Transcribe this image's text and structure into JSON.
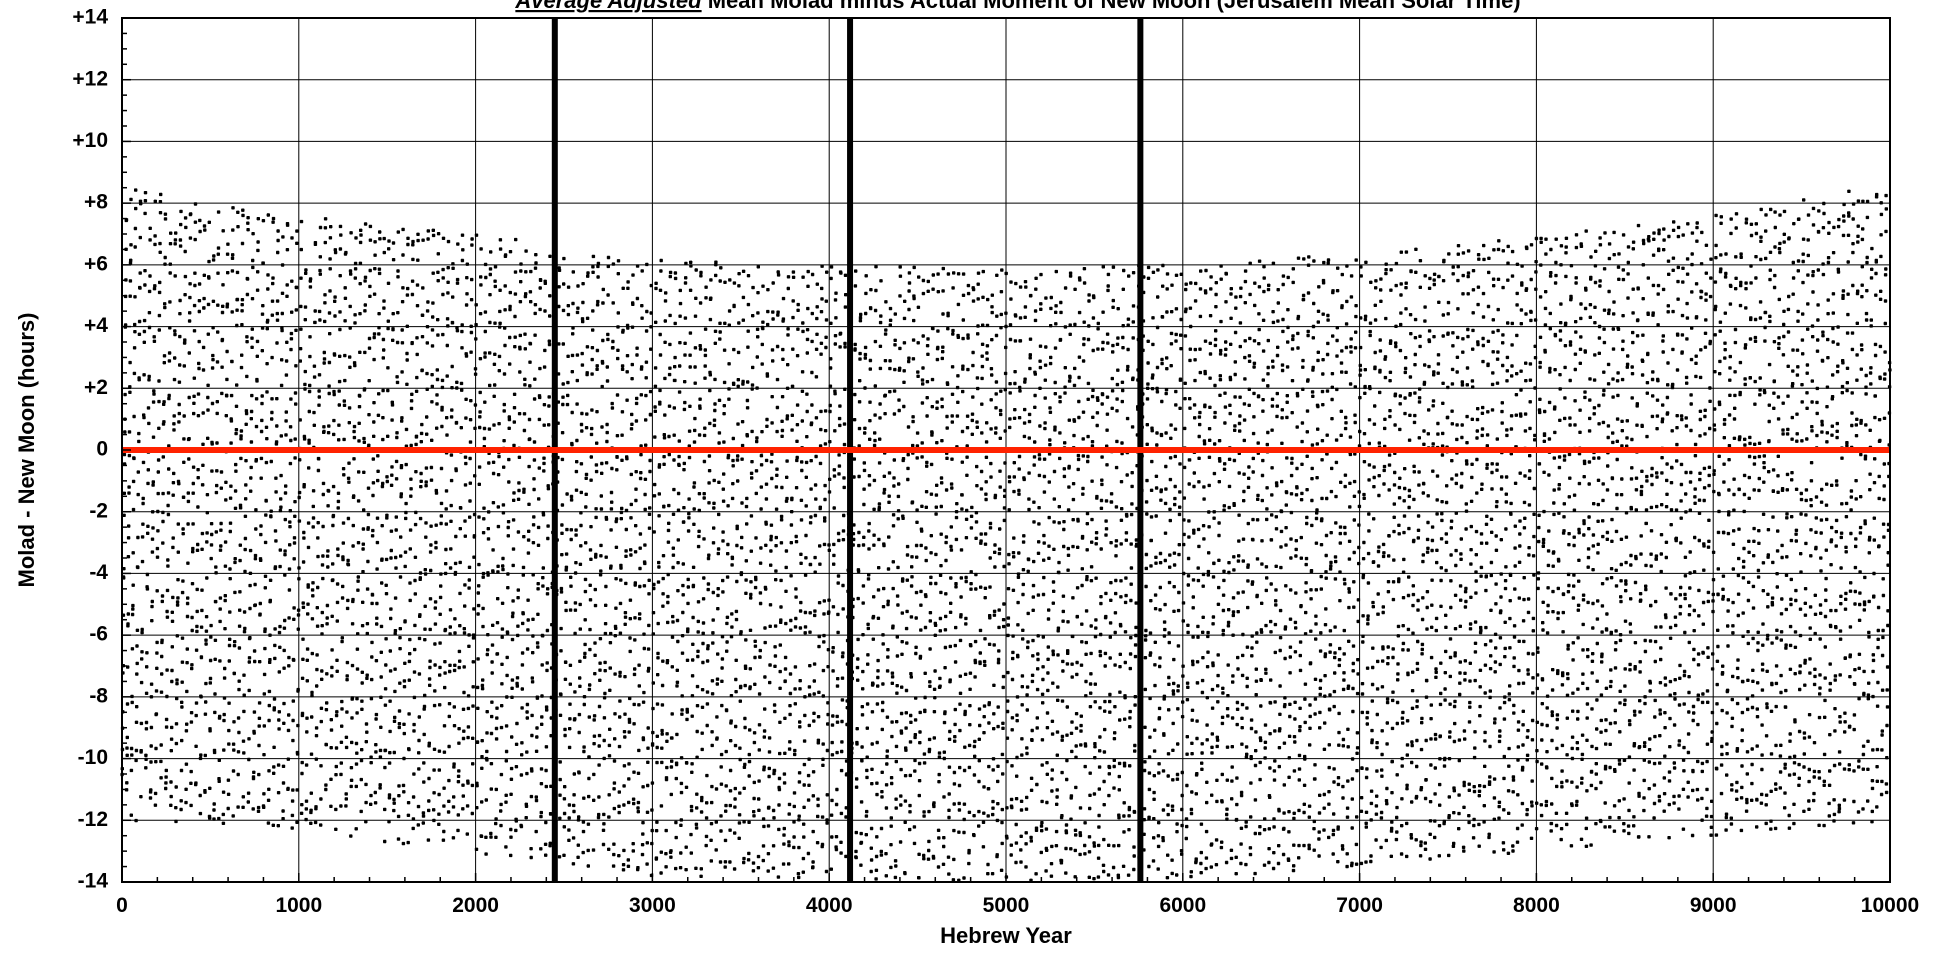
{
  "chart_data": {
    "type": "scatter",
    "title_emphasis": "Average Adjusted",
    "title_rest": " Mean Molad minus Actual Moment of New Moon (Jerusalem Mean Solar Time)",
    "xlabel": "Hebrew Year",
    "ylabel": "Molad - New Moon (hours)",
    "xlim": [
      0,
      10000
    ],
    "ylim": [
      -14,
      14
    ],
    "x_ticks": [
      0,
      1000,
      2000,
      3000,
      4000,
      5000,
      6000,
      7000,
      8000,
      9000,
      10000
    ],
    "y_ticks": [
      -14,
      -12,
      -10,
      -8,
      -6,
      -4,
      -2,
      0,
      2,
      4,
      6,
      8,
      10,
      12,
      14
    ],
    "x_tick_labels": [
      "0",
      "1000",
      "2000",
      "3000",
      "4000",
      "5000",
      "6000",
      "7000",
      "8000",
      "9000",
      "10000"
    ],
    "y_tick_labels": [
      "-14",
      "-12",
      "-10",
      "-8",
      "-6",
      "-4",
      "-2",
      "0",
      "+2",
      "+4",
      "+6",
      "+8",
      "+10",
      "+12",
      "+14"
    ],
    "grid": true,
    "reference_line": {
      "y": 0,
      "color": "#ff2200"
    },
    "vertical_lines": [
      2448,
      4118,
      5760
    ],
    "series": [
      {
        "marker_color": "#000000",
        "envelope_upper": [
          [
            0,
            8.5
          ],
          [
            1000,
            7.6
          ],
          [
            2000,
            7.0
          ],
          [
            2500,
            6.6
          ],
          [
            3000,
            6.2
          ],
          [
            4000,
            6.0
          ],
          [
            5000,
            5.9
          ],
          [
            6000,
            6.0
          ],
          [
            7000,
            6.4
          ],
          [
            8000,
            6.9
          ],
          [
            9000,
            7.6
          ],
          [
            10000,
            8.8
          ]
        ],
        "envelope_lower": [
          [
            0,
            -12.0
          ],
          [
            1000,
            -12.3
          ],
          [
            2000,
            -13.1
          ],
          [
            3000,
            -13.8
          ],
          [
            4000,
            -13.9
          ],
          [
            5000,
            -14.0
          ],
          [
            6000,
            -13.9
          ],
          [
            7000,
            -13.5
          ],
          [
            8000,
            -13.0
          ],
          [
            9000,
            -12.5
          ],
          [
            10000,
            -12.0
          ]
        ],
        "approx_point_count": 9800
      }
    ]
  }
}
